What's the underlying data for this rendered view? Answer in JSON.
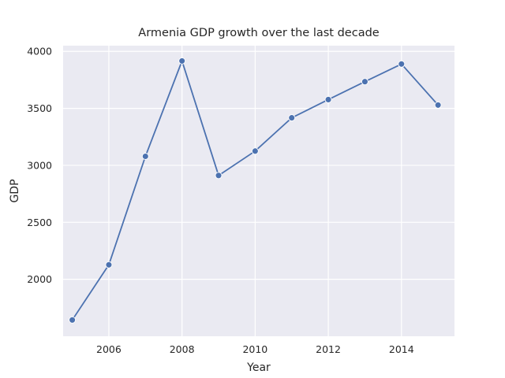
{
  "chart_data": {
    "type": "line",
    "title": "Armenia GDP growth over the last decade",
    "xlabel": "Year",
    "ylabel": "GDP",
    "x": [
      2005,
      2006,
      2007,
      2008,
      2009,
      2010,
      2011,
      2012,
      2013,
      2014,
      2015
    ],
    "series": [
      {
        "values": [
          1643,
          2127,
          3079,
          3916,
          2911,
          3125,
          3417,
          3577,
          3734,
          3889,
          3529
        ]
      }
    ],
    "xlim": [
      2004.75,
      2015.45
    ],
    "ylim": [
      1500,
      4050
    ],
    "xticks": [
      2006,
      2008,
      2010,
      2012,
      2014
    ],
    "yticks": [
      2000,
      2500,
      3000,
      3500,
      4000
    ],
    "grid": true,
    "colors": {
      "background": "#eaeaf2",
      "grid": "#ffffff",
      "line": "#4c72b0"
    }
  }
}
